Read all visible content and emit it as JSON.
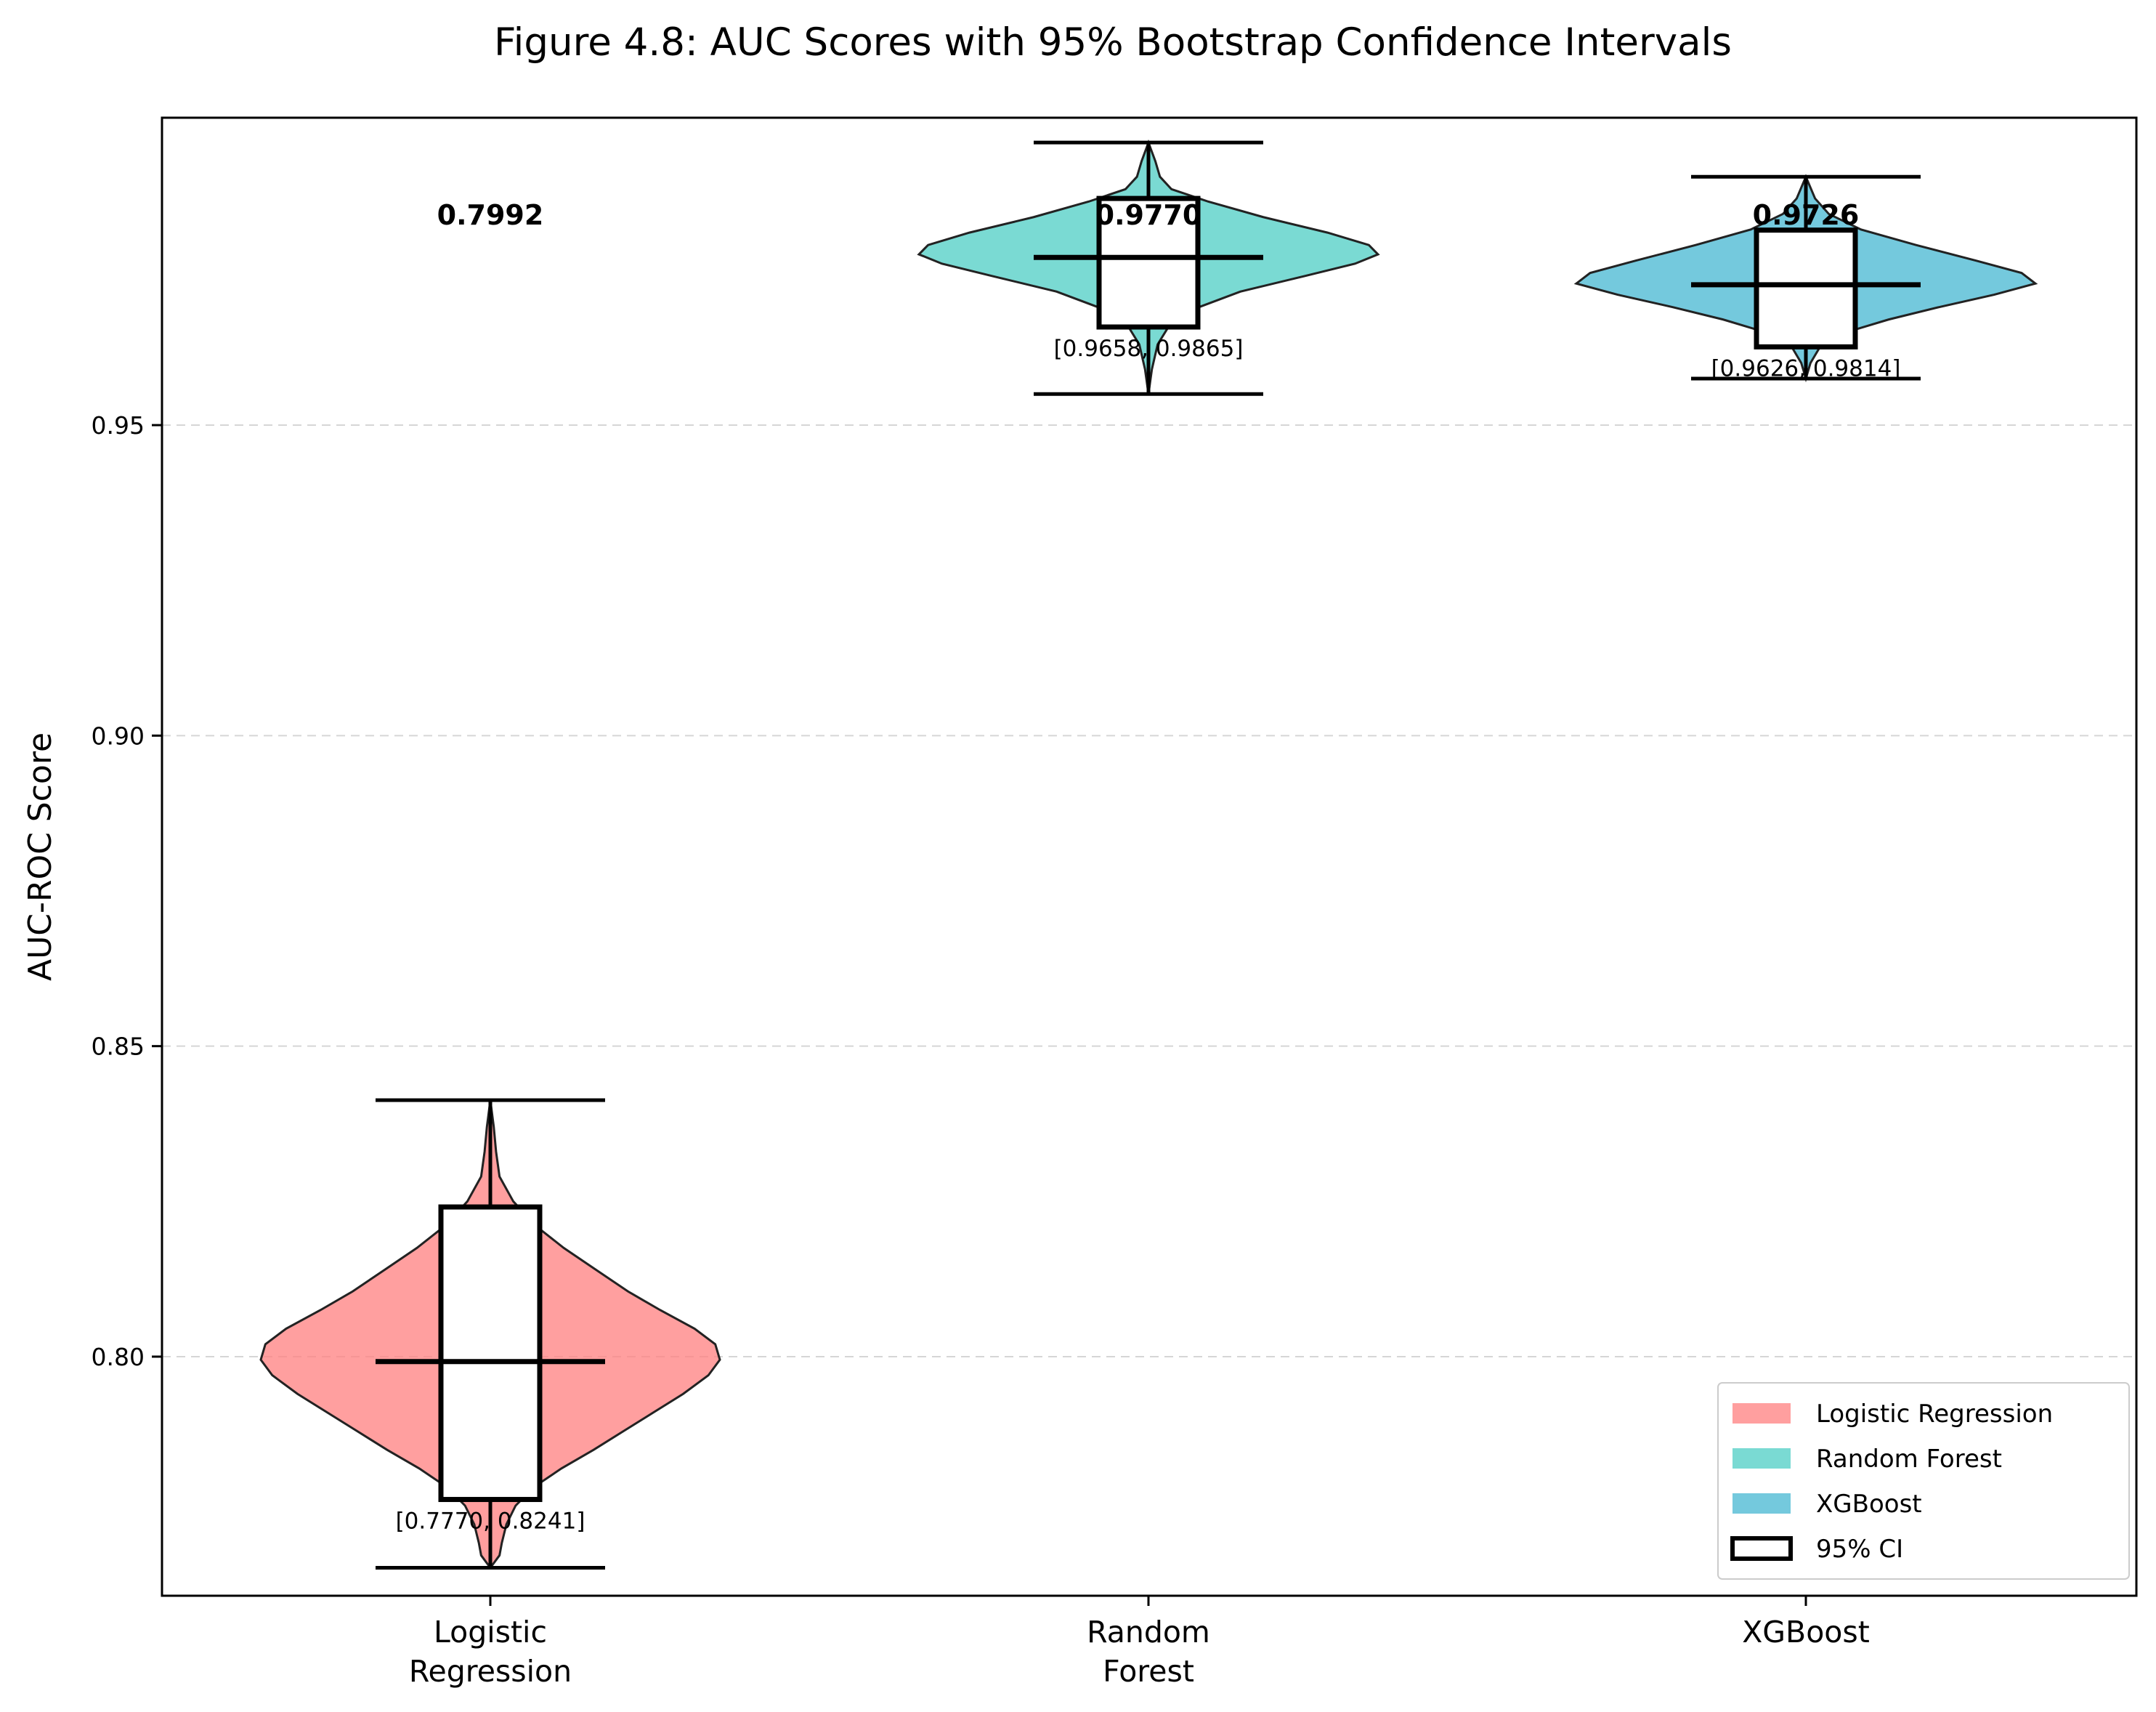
{
  "chart_data": {
    "type": "violin",
    "title": "Figure 4.8: AUC Scores with 95% Bootstrap Confidence Intervals",
    "xlabel": "",
    "ylabel": "AUC-ROC Score",
    "ylim": [
      0.7615,
      0.9995
    ],
    "yticks": [
      {
        "value": 0.8,
        "label": "0.80"
      },
      {
        "value": 0.85,
        "label": "0.85"
      },
      {
        "value": 0.9,
        "label": "0.90"
      },
      {
        "value": 0.95,
        "label": "0.95"
      }
    ],
    "grid": "y, dashed",
    "legend_position": "lower right",
    "categories": [
      {
        "tick_line1": "Logistic",
        "tick_line2": "Regression"
      },
      {
        "tick_line1": "Random",
        "tick_line2": "Forest"
      },
      {
        "tick_line1": "XGBoost",
        "tick_line2": ""
      }
    ],
    "series": [
      {
        "name": "Logistic Regression",
        "color": "#ff7f7f",
        "mean": 0.7992,
        "mean_label": "0.7992",
        "ci_low": 0.777,
        "ci_high": 0.8241,
        "ci_label": "[0.7770, 0.8241]",
        "median": 0.7992,
        "min": 0.766,
        "max": 0.8413,
        "density": [
          [
            0.766,
            0.0
          ],
          [
            0.768,
            0.04
          ],
          [
            0.77,
            0.05
          ],
          [
            0.773,
            0.07
          ],
          [
            0.776,
            0.11
          ],
          [
            0.779,
            0.19
          ],
          [
            0.782,
            0.31
          ],
          [
            0.785,
            0.45
          ],
          [
            0.788,
            0.58
          ],
          [
            0.791,
            0.71
          ],
          [
            0.794,
            0.84
          ],
          [
            0.797,
            0.95
          ],
          [
            0.7995,
            1.0
          ],
          [
            0.802,
            0.98
          ],
          [
            0.8045,
            0.89
          ],
          [
            0.8075,
            0.74
          ],
          [
            0.8105,
            0.6
          ],
          [
            0.814,
            0.46
          ],
          [
            0.8175,
            0.32
          ],
          [
            0.821,
            0.2
          ],
          [
            0.825,
            0.1
          ],
          [
            0.829,
            0.04
          ],
          [
            0.833,
            0.025
          ],
          [
            0.837,
            0.015
          ],
          [
            0.8413,
            0.0
          ]
        ]
      },
      {
        "name": "Random Forest",
        "color": "#4ecdc4",
        "mean": 0.977,
        "mean_label": "0.9770",
        "ci_low": 0.9658,
        "ci_high": 0.9865,
        "ci_label": "[0.9658, 0.9865]",
        "median": 0.977,
        "min": 0.955,
        "max": 0.9955,
        "density": [
          [
            0.955,
            0.0
          ],
          [
            0.959,
            0.015
          ],
          [
            0.963,
            0.04
          ],
          [
            0.966,
            0.09
          ],
          [
            0.969,
            0.22
          ],
          [
            0.9715,
            0.4
          ],
          [
            0.974,
            0.68
          ],
          [
            0.976,
            0.9
          ],
          [
            0.9775,
            1.0
          ],
          [
            0.979,
            0.96
          ],
          [
            0.981,
            0.78
          ],
          [
            0.9835,
            0.5
          ],
          [
            0.986,
            0.26
          ],
          [
            0.988,
            0.1
          ],
          [
            0.99,
            0.05
          ],
          [
            0.9925,
            0.03
          ],
          [
            0.9955,
            0.0
          ]
        ]
      },
      {
        "name": "XGBoost",
        "color": "#45b7d1",
        "mean": 0.9726,
        "mean_label": "0.9726",
        "ci_low": 0.9626,
        "ci_high": 0.9814,
        "ci_label": "[0.9626, 0.9814]",
        "median": 0.9726,
        "min": 0.9575,
        "max": 0.99,
        "density": [
          [
            0.9575,
            0.0
          ],
          [
            0.96,
            0.02
          ],
          [
            0.9625,
            0.06
          ],
          [
            0.965,
            0.18
          ],
          [
            0.967,
            0.36
          ],
          [
            0.969,
            0.58
          ],
          [
            0.971,
            0.82
          ],
          [
            0.9728,
            1.0
          ],
          [
            0.9745,
            0.94
          ],
          [
            0.9765,
            0.74
          ],
          [
            0.979,
            0.48
          ],
          [
            0.9815,
            0.24
          ],
          [
            0.984,
            0.1
          ],
          [
            0.9865,
            0.04
          ],
          [
            0.99,
            0.0
          ]
        ]
      }
    ],
    "legend": [
      {
        "label": "Logistic Regression",
        "color": "#ff7f7f",
        "kind": "fill"
      },
      {
        "label": "Random Forest",
        "color": "#4ecdc4",
        "kind": "fill"
      },
      {
        "label": "XGBoost",
        "color": "#45b7d1",
        "kind": "fill"
      },
      {
        "label": "95% CI",
        "color": "#000000",
        "kind": "box"
      }
    ]
  }
}
